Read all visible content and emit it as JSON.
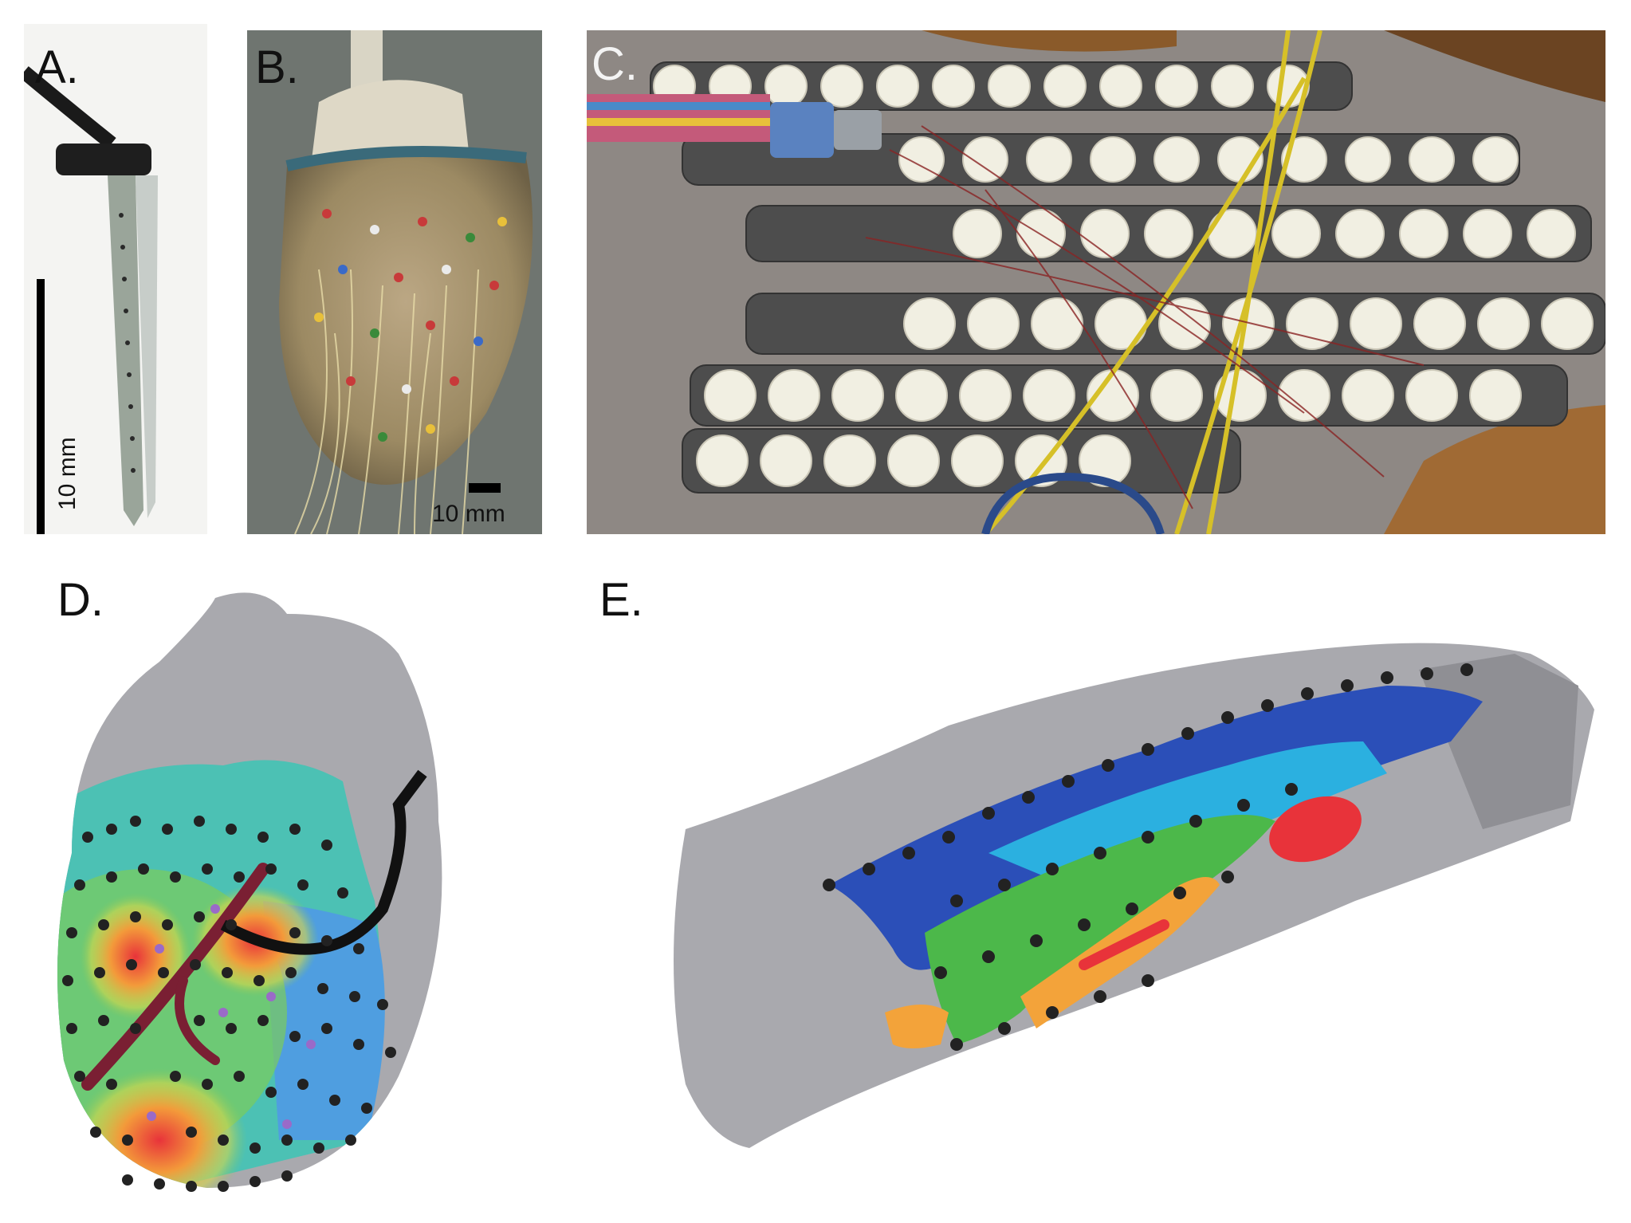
{
  "figure": {
    "panels": [
      {
        "id": "A",
        "label": "A.",
        "scale_bar": "10 mm"
      },
      {
        "id": "B",
        "label": "B.",
        "scale_bar": "10 mm"
      },
      {
        "id": "C",
        "label": "C."
      },
      {
        "id": "D",
        "label": "D."
      },
      {
        "id": "E",
        "label": "E."
      }
    ]
  },
  "colors": {
    "electrode_dot": "#222222",
    "heart_gray": "#a9a9ae",
    "vessel": "#7a1f33",
    "catheter": "#111111",
    "strip": "#4a4a4a",
    "electrode_disc": "#f1efe2",
    "activation_low": "#2b4fb8",
    "activation_high": "#e8333a"
  },
  "icons": {
    "needle_electrode": "needle-electrode-icon",
    "sock_electrode": "heart-sock-icon",
    "torso_tank": "torso-electrode-array-icon"
  }
}
